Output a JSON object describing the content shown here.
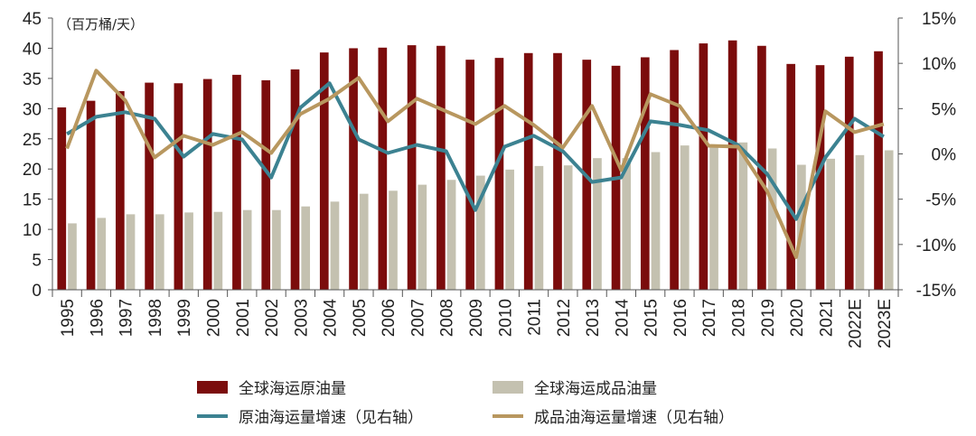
{
  "chart_data": {
    "type": "bar",
    "unit_label": "（百万桶/天）",
    "categories": [
      "1995",
      "1996",
      "1997",
      "1998",
      "1999",
      "2000",
      "2001",
      "2002",
      "2003",
      "2004",
      "2005",
      "2006",
      "2007",
      "2008",
      "2009",
      "2010",
      "2011",
      "2012",
      "2013",
      "2014",
      "2015",
      "2016",
      "2017",
      "2018",
      "2019",
      "2020",
      "2021",
      "2022E",
      "2023E"
    ],
    "ylim_left": [
      0,
      45
    ],
    "yticks_left": [
      "0",
      "5",
      "10",
      "15",
      "20",
      "25",
      "30",
      "35",
      "40",
      "45"
    ],
    "ylim_right": [
      -15,
      15
    ],
    "yticks_right": [
      "-15%",
      "-10%",
      "-5%",
      "0%",
      "5%",
      "10%",
      "15%"
    ],
    "series": [
      {
        "name": "全球海运原油量",
        "kind": "bar",
        "axis": "left",
        "color": "#7b0c0c",
        "values": [
          30.2,
          31.3,
          32.9,
          34.3,
          34.2,
          34.9,
          35.6,
          34.7,
          36.5,
          39.3,
          40.0,
          40.1,
          40.5,
          40.4,
          38.1,
          38.4,
          39.2,
          39.2,
          38.1,
          37.1,
          38.5,
          39.7,
          40.8,
          41.3,
          40.4,
          37.4,
          37.2,
          38.6,
          39.5
        ]
      },
      {
        "name": "全球海运成品油量",
        "kind": "bar",
        "axis": "left",
        "color": "#c4c1b0",
        "values": [
          11.0,
          11.9,
          12.5,
          12.5,
          12.8,
          12.9,
          13.2,
          13.2,
          13.8,
          14.6,
          15.9,
          16.4,
          17.4,
          18.2,
          18.9,
          19.9,
          20.5,
          20.6,
          21.8,
          21.8,
          22.8,
          23.9,
          24.0,
          24.4,
          23.4,
          20.7,
          21.7,
          22.3,
          23.1
        ]
      },
      {
        "name": "原油海运量增速（见右轴）",
        "kind": "line",
        "axis": "right",
        "color": "#3c8291",
        "values": [
          2.2,
          4.1,
          4.6,
          3.9,
          -0.3,
          2.2,
          1.6,
          -2.6,
          5.1,
          7.8,
          1.6,
          0.1,
          1.0,
          0.3,
          -6.2,
          0.8,
          2.0,
          0.3,
          -3.1,
          -2.6,
          3.6,
          3.2,
          2.6,
          1.0,
          -2.2,
          -7.2,
          -0.4,
          3.9,
          1.9
        ]
      },
      {
        "name": "成品油海运量增速（见右轴）",
        "kind": "line",
        "axis": "right",
        "color": "#b8975f",
        "values": [
          0.6,
          9.2,
          5.9,
          -0.4,
          2.0,
          1.0,
          2.4,
          0.1,
          4.4,
          6.1,
          8.4,
          3.6,
          6.1,
          4.7,
          3.3,
          5.3,
          3.2,
          0.7,
          5.3,
          -1.8,
          6.6,
          5.3,
          0.9,
          0.8,
          -4.1,
          -11.4,
          4.7,
          2.4,
          3.3
        ]
      }
    ],
    "grid": false,
    "legend_position": "bottom"
  }
}
